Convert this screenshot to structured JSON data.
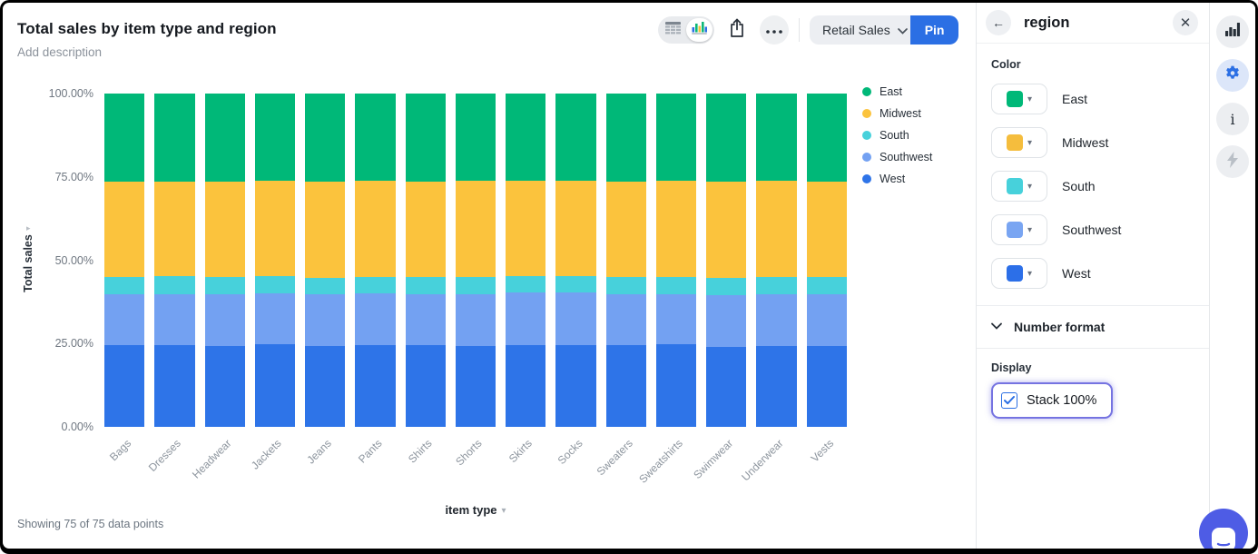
{
  "header": {
    "title": "Total sales by item type and region",
    "description_placeholder": "Add description"
  },
  "toolbar": {
    "view_toggle": {
      "options": [
        "table",
        "chart"
      ],
      "selected": "chart"
    },
    "dataset_button": {
      "label": "Retail Sales"
    },
    "pin_button": {
      "label": "Pin",
      "color": "#2b6fe4"
    }
  },
  "chart_data": {
    "type": "bar",
    "stacked": true,
    "stack_100_percent": true,
    "title": "Total sales by item type and region",
    "xlabel": "item type",
    "ylabel": "Total sales",
    "ylim": [
      0,
      100
    ],
    "y_ticks": [
      "100.00%",
      "75.00%",
      "50.00%",
      "25.00%",
      "0.00%"
    ],
    "grid": false,
    "legend_position": "top-right",
    "categories": [
      "Bags",
      "Dresses",
      "Headwear",
      "Jackets",
      "Jeans",
      "Pants",
      "Shirts",
      "Shorts",
      "Skirts",
      "Socks",
      "Sweaters",
      "Sweatshirts",
      "Swimwear",
      "Underwear",
      "Vests"
    ],
    "series": [
      {
        "name": "West",
        "color": "#2e74e8",
        "values": [
          24.5,
          24.5,
          24.3,
          24.8,
          24.3,
          24.5,
          24.5,
          24.3,
          24.5,
          24.5,
          24.5,
          24.8,
          23.9,
          24.2,
          24.2
        ]
      },
      {
        "name": "Southwest",
        "color": "#73a1f2",
        "values": [
          15.2,
          15.4,
          15.6,
          15.2,
          15.4,
          15.5,
          15.3,
          15.5,
          15.8,
          15.7,
          15.2,
          15.0,
          15.6,
          15.7,
          15.5
        ]
      },
      {
        "name": "South",
        "color": "#47d1db",
        "values": [
          5.3,
          5.2,
          5.0,
          5.2,
          5.1,
          5.0,
          5.2,
          5.1,
          4.9,
          5.0,
          5.3,
          5.2,
          5.1,
          5.1,
          5.3
        ]
      },
      {
        "name": "Midwest",
        "color": "#fbc33d",
        "values": [
          28.6,
          28.4,
          28.8,
          28.7,
          28.9,
          28.8,
          28.7,
          28.9,
          28.7,
          28.6,
          28.6,
          28.8,
          28.9,
          28.8,
          28.7
        ]
      },
      {
        "name": "East",
        "color": "#00b878",
        "values": [
          26.4,
          26.5,
          26.3,
          26.1,
          26.3,
          26.2,
          26.3,
          26.2,
          26.1,
          26.2,
          26.4,
          26.2,
          26.5,
          26.2,
          26.3
        ]
      }
    ]
  },
  "footer": {
    "status": "Showing 75 of 75 data points"
  },
  "panel": {
    "title": "region",
    "color_section": {
      "label": "Color",
      "items": [
        {
          "label": "East",
          "color": "#00b878"
        },
        {
          "label": "Midwest",
          "color": "#f5bd3d"
        },
        {
          "label": "South",
          "color": "#47d1db"
        },
        {
          "label": "Southwest",
          "color": "#79a5f2"
        },
        {
          "label": "West",
          "color": "#2c6fe8"
        }
      ]
    },
    "number_format": {
      "label": "Number format"
    },
    "display": {
      "label": "Display",
      "stack_checkbox": {
        "label": "Stack 100%",
        "checked": true,
        "focus_color": "#7573e1"
      }
    }
  },
  "side_rail": {
    "icons": [
      {
        "name": "chart",
        "active": false
      },
      {
        "name": "settings",
        "active": true
      },
      {
        "name": "info",
        "active": false
      },
      {
        "name": "lightning",
        "active": false
      }
    ]
  },
  "chat": {
    "launcher_color": "#4e5ce5"
  }
}
